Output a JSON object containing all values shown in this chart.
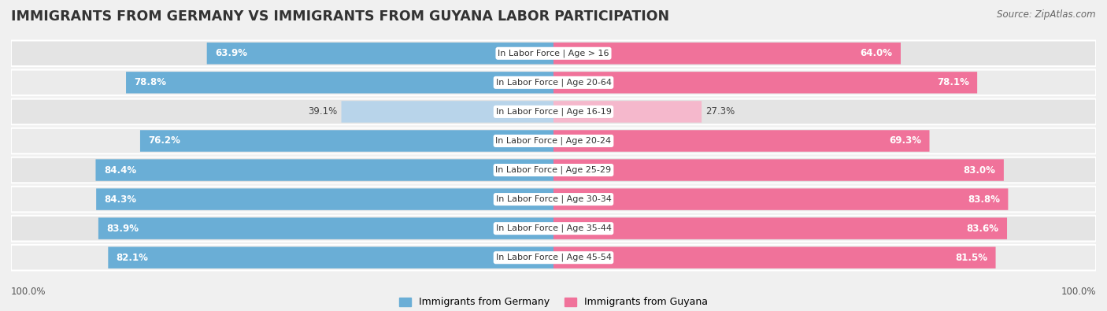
{
  "title": "IMMIGRANTS FROM GERMANY VS IMMIGRANTS FROM GUYANA LABOR PARTICIPATION",
  "source": "Source: ZipAtlas.com",
  "categories": [
    "In Labor Force | Age > 16",
    "In Labor Force | Age 20-64",
    "In Labor Force | Age 16-19",
    "In Labor Force | Age 20-24",
    "In Labor Force | Age 25-29",
    "In Labor Force | Age 30-34",
    "In Labor Force | Age 35-44",
    "In Labor Force | Age 45-54"
  ],
  "germany_values": [
    63.9,
    78.8,
    39.1,
    76.2,
    84.4,
    84.3,
    83.9,
    82.1
  ],
  "guyana_values": [
    64.0,
    78.1,
    27.3,
    69.3,
    83.0,
    83.8,
    83.6,
    81.5
  ],
  "germany_color": "#6aaed6",
  "germany_light_color": "#b8d4ea",
  "guyana_color": "#f0729a",
  "guyana_light_color": "#f5b8cc",
  "row_bg_even": "#e8e8e8",
  "row_bg_odd": "#f0f0f0",
  "background_color": "#f0f0f0",
  "max_value": 100.0,
  "bar_height": 0.72,
  "title_fontsize": 12.5,
  "source_fontsize": 8.5,
  "value_fontsize": 8.5,
  "category_fontsize": 8.0,
  "legend_fontsize": 9,
  "footer_label": "100.0%"
}
